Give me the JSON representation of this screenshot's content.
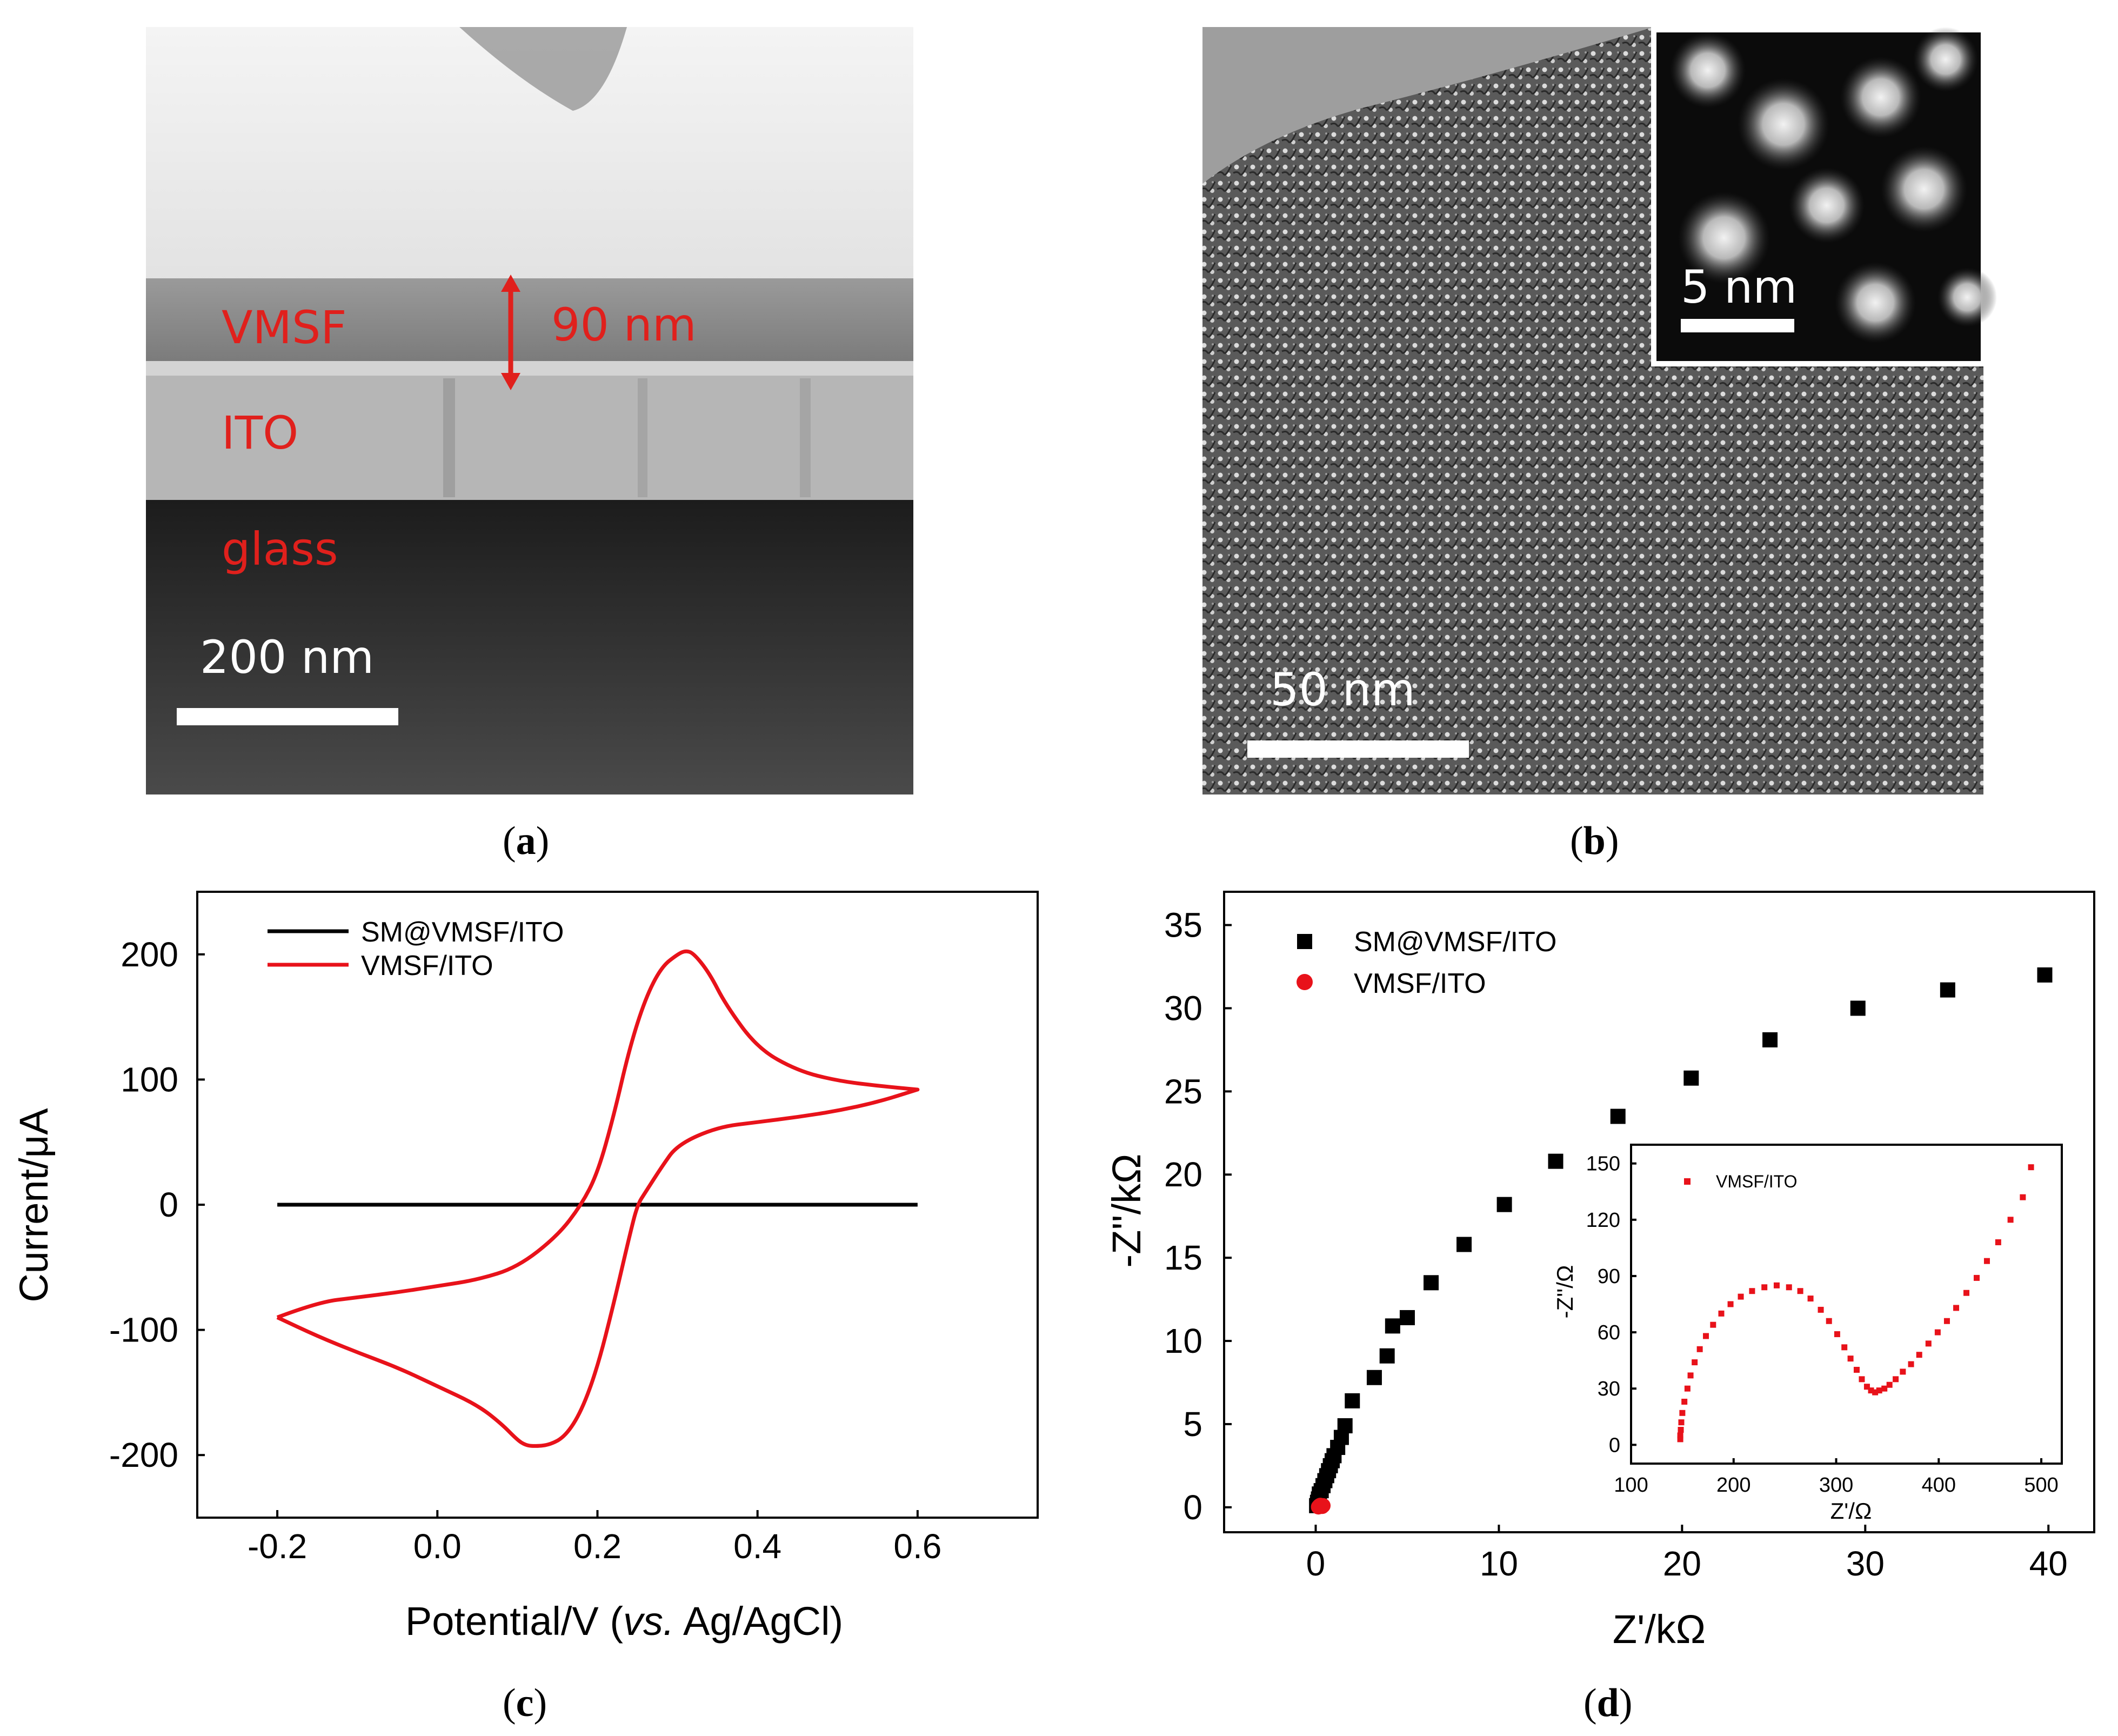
{
  "captions": {
    "a": "a",
    "b": "b",
    "c": "c",
    "d": "d"
  },
  "panel_a": {
    "layers": [
      "VMSF",
      "ITO",
      "glass"
    ],
    "thickness_label": "90 nm",
    "scale_bar": "200 nm"
  },
  "panel_b": {
    "scale_bar": "50 nm",
    "inset_scale_bar": "5 nm"
  },
  "colors": {
    "red": "#e8121a",
    "black": "#000000",
    "annot_red": "#e0201c"
  },
  "chart_data": [
    {
      "panel": "c",
      "type": "line",
      "xlabel_prefix": "Potential/V (",
      "xlabel_italic": "vs.",
      "xlabel_suffix": " Ag/AgCl)",
      "ylabel": "Current/μA",
      "xlim": [
        -0.3,
        0.75
      ],
      "ylim": [
        -250,
        250
      ],
      "xticks": [
        -0.2,
        0.0,
        0.2,
        0.4,
        0.6
      ],
      "xtick_labels": [
        "-0.2",
        "0.0",
        "0.2",
        "0.4",
        "0.6"
      ],
      "yticks": [
        -200,
        -100,
        0,
        100,
        200
      ],
      "ytick_labels": [
        "-200",
        "-100",
        "0",
        "100",
        "200"
      ],
      "legend": [
        "SM@VMSF/ITO",
        "VMSF/ITO"
      ],
      "series": [
        {
          "name": "SM@VMSF/ITO",
          "color": "#000000",
          "x": [
            -0.2,
            0.6
          ],
          "y": [
            0,
            0
          ]
        },
        {
          "name": "VMSF/ITO",
          "color": "#e8121a",
          "forward": {
            "x": [
              -0.2,
              -0.15,
              -0.1,
              -0.05,
              0.0,
              0.05,
              0.1,
              0.15,
              0.18,
              0.2,
              0.22,
              0.24,
              0.26,
              0.28,
              0.3,
              0.31,
              0.32,
              0.34,
              0.36,
              0.4,
              0.45,
              0.5,
              0.55,
              0.6
            ],
            "y": [
              -90,
              -78,
              -74,
              -70,
              -65,
              -60,
              -50,
              -25,
              0,
              25,
              70,
              125,
              165,
              190,
              200,
              203,
              201,
              185,
              160,
              125,
              107,
              99,
              95,
              92
            ]
          },
          "reverse": {
            "x": [
              0.6,
              0.55,
              0.5,
              0.45,
              0.4,
              0.35,
              0.3,
              0.28,
              0.26,
              0.25,
              0.24,
              0.22,
              0.2,
              0.18,
              0.16,
              0.14,
              0.12,
              0.11,
              0.1,
              0.08,
              0.05,
              0.0,
              -0.05,
              -0.1,
              -0.15,
              -0.2
            ],
            "y": [
              92,
              82,
              75,
              70,
              66,
              62,
              48,
              30,
              10,
              0,
              -25,
              -80,
              -130,
              -165,
              -185,
              -192,
              -193,
              -192,
              -188,
              -175,
              -160,
              -145,
              -130,
              -118,
              -105,
              -90
            ]
          }
        }
      ]
    },
    {
      "panel": "d",
      "type": "scatter",
      "xlabel": "Z'/kΩ",
      "ylabel": "-Z''/kΩ",
      "xlim": [
        -5,
        42.5
      ],
      "ylim": [
        -1.5,
        37
      ],
      "xticks": [
        0,
        10,
        20,
        30,
        40
      ],
      "xtick_labels": [
        "0",
        "10",
        "20",
        "30",
        "40"
      ],
      "yticks": [
        0,
        5,
        10,
        15,
        20,
        25,
        30,
        35
      ],
      "ytick_labels": [
        "0",
        "5",
        "10",
        "15",
        "20",
        "25",
        "30",
        "35"
      ],
      "legend": [
        "SM@VMSF/ITO",
        "VMSF/ITO"
      ],
      "series": [
        {
          "name": "SM@VMSF/ITO",
          "color": "#000000",
          "marker": "square",
          "x": [
            0.05,
            0.1,
            0.15,
            0.2,
            0.3,
            0.4,
            0.5,
            0.6,
            0.7,
            0.8,
            0.9,
            1.0,
            1.2,
            1.4,
            1.6,
            2.0,
            3.2,
            3.9,
            4.2,
            5.0,
            6.3,
            8.1,
            10.3,
            13.1,
            16.5,
            20.5,
            24.8,
            29.6,
            34.5,
            39.8
          ],
          "y": [
            0.1,
            0.3,
            0.5,
            0.8,
            1.0,
            1.3,
            1.6,
            1.9,
            2.2,
            2.5,
            2.8,
            3.1,
            3.6,
            4.2,
            4.9,
            6.4,
            7.8,
            9.1,
            10.9,
            11.4,
            13.5,
            15.8,
            18.2,
            20.8,
            23.5,
            25.8,
            28.1,
            30.0,
            31.1,
            32.0
          ]
        },
        {
          "name": "VMSF/ITO",
          "color": "#e8121a",
          "marker": "circle",
          "x": [
            0.15,
            0.18,
            0.2,
            0.22,
            0.25,
            0.28,
            0.3,
            0.32,
            0.35,
            0.4
          ],
          "y": [
            0.02,
            0.05,
            0.08,
            0.1,
            0.12,
            0.1,
            0.08,
            0.06,
            0.05,
            0.1
          ]
        }
      ],
      "inset": {
        "type": "scatter",
        "xlabel": "Z'/Ω",
        "ylabel": "-Z''/Ω",
        "xlim": [
          100,
          520
        ],
        "ylim": [
          -10,
          160
        ],
        "xticks": [
          100,
          200,
          300,
          400,
          500
        ],
        "xtick_labels": [
          "100",
          "200",
          "300",
          "400",
          "500"
        ],
        "yticks": [
          0,
          30,
          60,
          90,
          120,
          150
        ],
        "ytick_labels": [
          "0",
          "30",
          "60",
          "90",
          "120",
          "150"
        ],
        "legend": [
          "VMSF/ITO"
        ],
        "series": [
          {
            "name": "VMSF/ITO",
            "color": "#e8121a",
            "marker": "square",
            "x": [
              148,
              148,
              148.5,
              149,
              150,
              152,
              155,
              158,
              162,
              167,
              173,
              180,
              188,
              197,
              207,
              218,
              230,
              242,
              254,
              265,
              275,
              285,
              293,
              301,
              308,
              314,
              320,
              325,
              330,
              334,
              338,
              342,
              347,
              352,
              358,
              365,
              373,
              381,
              390,
              399,
              408,
              417,
              427,
              437,
              447,
              458,
              470,
              482,
              490
            ],
            "y": [
              3,
              5,
              8,
              12,
              17,
              23,
              30,
              37,
              44,
              51,
              58,
              64,
              70,
              75,
              79,
              82,
              84,
              85,
              84,
              82,
              78,
              72,
              66,
              59,
              52,
              46,
              40,
              35,
              31,
              29,
              28,
              29,
              30,
              32,
              35,
              39,
              43,
              48,
              54,
              60,
              66,
              73,
              81,
              89,
              98,
              108,
              120,
              132,
              148
            ]
          }
        ]
      }
    }
  ]
}
